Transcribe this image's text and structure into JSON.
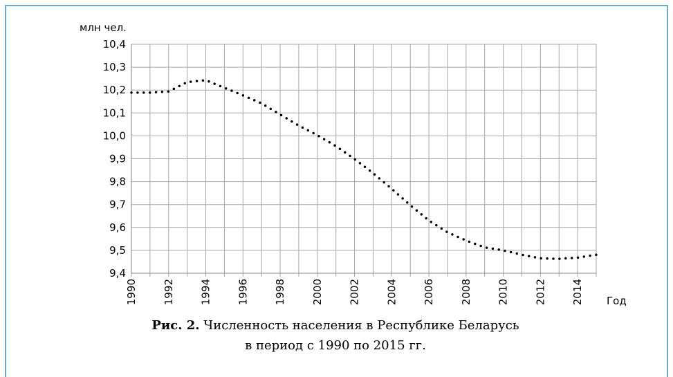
{
  "chart_data": {
    "type": "line",
    "y_label": "млн чел.",
    "x_label": "Год",
    "caption_label": "Рис. 2.",
    "caption_line1": "Численность населения в Республике Беларусь",
    "caption_line2": "в период с 1990 по 2015 гг.",
    "x": [
      1990,
      1991,
      1992,
      1993,
      1994,
      1995,
      1996,
      1997,
      1998,
      1999,
      2000,
      2001,
      2002,
      2003,
      2004,
      2005,
      2006,
      2007,
      2008,
      2009,
      2010,
      2011,
      2012,
      2013,
      2014,
      2015
    ],
    "series": [
      {
        "name": "Численность населения",
        "color": "#000000",
        "values": [
          10.189,
          10.189,
          10.194,
          10.235,
          10.243,
          10.21,
          10.177,
          10.142,
          10.093,
          10.045,
          10.003,
          9.955,
          9.899,
          9.837,
          9.769,
          9.697,
          9.63,
          9.579,
          9.543,
          9.513,
          9.5,
          9.481,
          9.465,
          9.463,
          9.468,
          9.481
        ]
      }
    ],
    "xlim": [
      1990,
      2015
    ],
    "xticks": [
      1990,
      1992,
      1994,
      1996,
      1998,
      2000,
      2002,
      2004,
      2006,
      2008,
      2010,
      2012,
      2014
    ],
    "xminorticks": [
      1991,
      1993,
      1995,
      1997,
      1999,
      2001,
      2003,
      2005,
      2007,
      2009,
      2011,
      2013,
      2015
    ],
    "ylim": [
      9.4,
      10.4
    ],
    "yticks": [
      {
        "value": 9.4,
        "label": "9,4"
      },
      {
        "value": 9.5,
        "label": "9,5"
      },
      {
        "value": 9.6,
        "label": "9,6"
      },
      {
        "value": 9.7,
        "label": "9,7"
      },
      {
        "value": 9.8,
        "label": "9,8"
      },
      {
        "value": 9.9,
        "label": "9,9"
      },
      {
        "value": 10.0,
        "label": "10,0"
      },
      {
        "value": 10.1,
        "label": "10,1"
      },
      {
        "value": 10.2,
        "label": "10,2"
      },
      {
        "value": 10.3,
        "label": "10,3"
      },
      {
        "value": 10.4,
        "label": "10,4"
      }
    ],
    "grid": true
  }
}
